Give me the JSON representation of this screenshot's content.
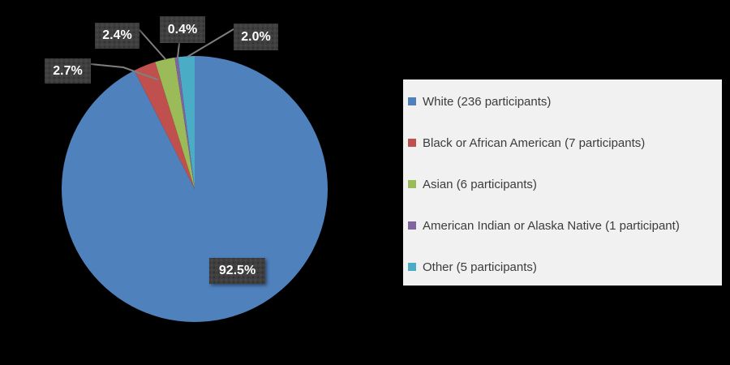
{
  "chart_data": {
    "type": "pie",
    "title": "",
    "categories": [
      "White",
      "Black or African American",
      "Asian",
      "American Indian or Alaska Native",
      "Other"
    ],
    "values": [
      92.5,
      2.7,
      2.4,
      0.4,
      2.0
    ],
    "unit": "%",
    "start_angle_deg": 0,
    "direction": "clockwise",
    "legend_position": "right",
    "slices": [
      {
        "label": "White",
        "participants": 236,
        "value": 92.5,
        "pct_label": "92.5%",
        "color": "#4F81BD"
      },
      {
        "label": "Black or African American",
        "participants": 7,
        "value": 2.7,
        "pct_label": "2.7%",
        "color": "#C0504D"
      },
      {
        "label": "Asian",
        "participants": 6,
        "value": 2.4,
        "pct_label": "2.4%",
        "color": "#9BBB59"
      },
      {
        "label": "American Indian or Alaska Native",
        "participants": 1,
        "value": 0.4,
        "pct_label": "0.4%",
        "color": "#8064A2"
      },
      {
        "label": "Other",
        "participants": 5,
        "value": 2.0,
        "pct_label": "2.0%",
        "color": "#4BACC6"
      }
    ]
  },
  "legend": {
    "items": [
      {
        "label": "White (236 participants)",
        "color": "#4F81BD"
      },
      {
        "label": "Black or African American (7 participants)",
        "color": "#C0504D"
      },
      {
        "label": "Asian (6 participants)",
        "color": "#9BBB59"
      },
      {
        "label": "American Indian or Alaska Native (1 participant)",
        "color": "#8064A2"
      },
      {
        "label": "Other (5 participants)",
        "color": "#4BACC6"
      }
    ]
  },
  "colors": {
    "background": "#000000",
    "label_box": "#3F3F3F",
    "label_text": "#FFFFFF",
    "leader_line": "#7F7F7F",
    "legend_background": "#F1F1F1",
    "legend_text": "#3C3C3C"
  }
}
